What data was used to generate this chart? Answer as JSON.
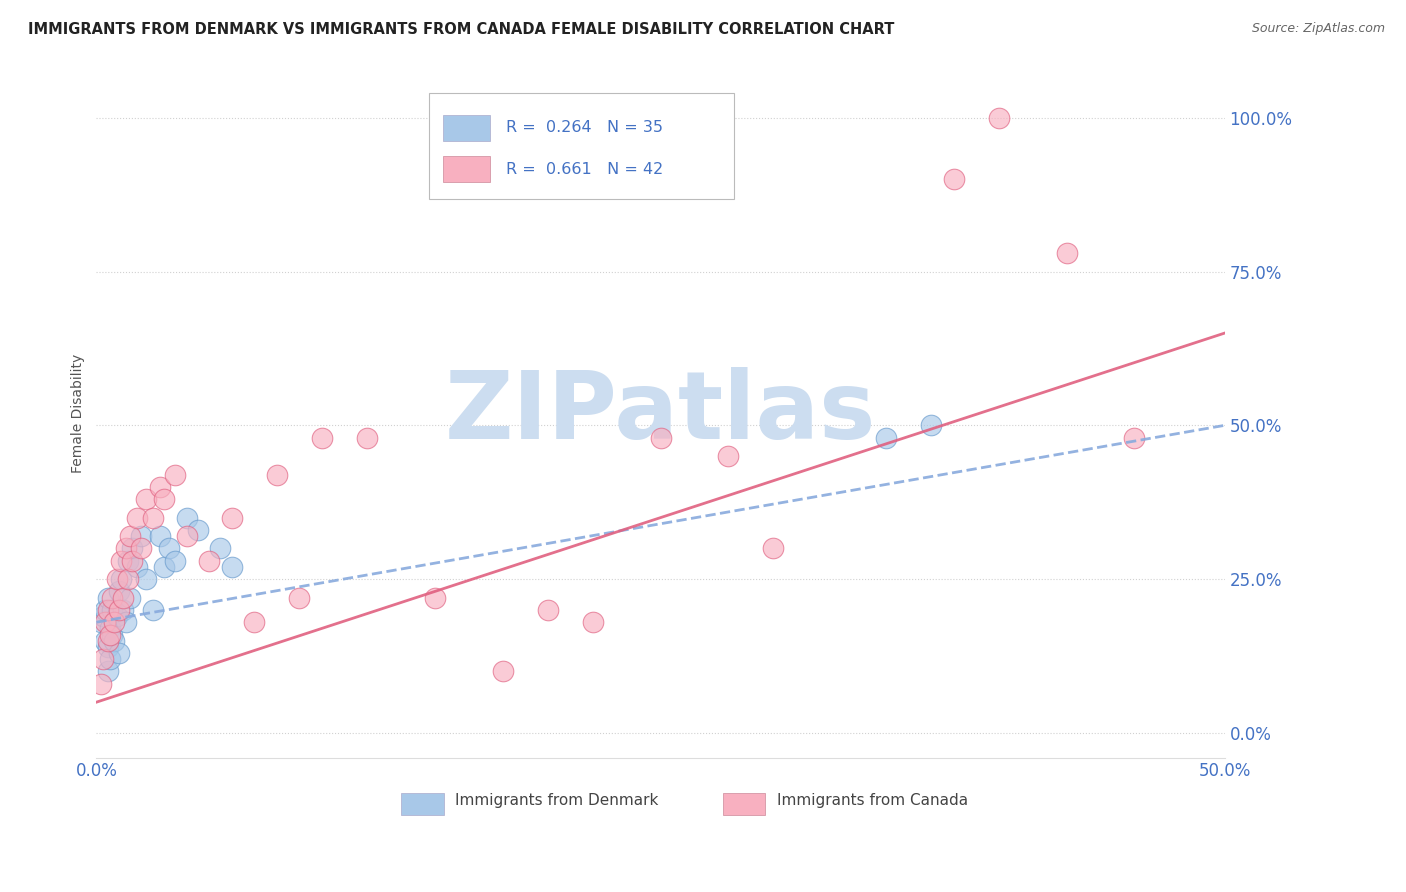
{
  "title": "IMMIGRANTS FROM DENMARK VS IMMIGRANTS FROM CANADA FEMALE DISABILITY CORRELATION CHART",
  "source": "Source: ZipAtlas.com",
  "ylabel": "Female Disability",
  "xlim": [
    0.0,
    0.5
  ],
  "ylim": [
    -0.04,
    1.08
  ],
  "yticks": [
    0.0,
    0.25,
    0.5,
    0.75,
    1.0
  ],
  "ytick_labels": [
    "0.0%",
    "25.0%",
    "50.0%",
    "75.0%",
    "100.0%"
  ],
  "xticks": [
    0.0,
    0.1,
    0.2,
    0.3,
    0.4,
    0.5
  ],
  "xtick_labels": [
    "0.0%",
    "",
    "",
    "",
    "",
    "50.0%"
  ],
  "legend_entries": [
    {
      "label": "Immigrants from Denmark",
      "color": "#a8c8e8",
      "R": 0.264,
      "N": 35
    },
    {
      "label": "Immigrants from Canada",
      "color": "#f8b0c0",
      "R": 0.661,
      "N": 42
    }
  ],
  "denmark_scatter_color": "#a8c8e8",
  "denmark_edge_color": "#6699cc",
  "canada_scatter_color": "#f8b0c0",
  "canada_edge_color": "#e06080",
  "denmark_line_color": "#88aadd",
  "canada_line_color": "#e06080",
  "watermark": "ZIPatlas",
  "watermark_color": "#ccddf0",
  "title_color": "#222222",
  "source_color": "#666666",
  "axis_color": "#4472c4",
  "ylabel_color": "#555555",
  "grid_color": "#cccccc",
  "denmark_x": [
    0.002,
    0.003,
    0.004,
    0.004,
    0.005,
    0.005,
    0.005,
    0.006,
    0.006,
    0.007,
    0.007,
    0.008,
    0.009,
    0.01,
    0.01,
    0.011,
    0.012,
    0.013,
    0.014,
    0.015,
    0.016,
    0.018,
    0.02,
    0.022,
    0.025,
    0.028,
    0.03,
    0.032,
    0.035,
    0.04,
    0.045,
    0.055,
    0.06,
    0.35,
    0.37
  ],
  "denmark_y": [
    0.18,
    0.19,
    0.15,
    0.2,
    0.1,
    0.14,
    0.22,
    0.12,
    0.17,
    0.16,
    0.2,
    0.15,
    0.19,
    0.13,
    0.23,
    0.25,
    0.2,
    0.18,
    0.28,
    0.22,
    0.3,
    0.27,
    0.32,
    0.25,
    0.2,
    0.32,
    0.27,
    0.3,
    0.28,
    0.35,
    0.33,
    0.3,
    0.27,
    0.48,
    0.5
  ],
  "canada_x": [
    0.002,
    0.003,
    0.004,
    0.005,
    0.005,
    0.006,
    0.007,
    0.008,
    0.009,
    0.01,
    0.011,
    0.012,
    0.013,
    0.014,
    0.015,
    0.016,
    0.018,
    0.02,
    0.022,
    0.025,
    0.028,
    0.03,
    0.035,
    0.04,
    0.05,
    0.06,
    0.07,
    0.08,
    0.09,
    0.1,
    0.12,
    0.15,
    0.18,
    0.2,
    0.22,
    0.25,
    0.28,
    0.3,
    0.38,
    0.4,
    0.43,
    0.46
  ],
  "canada_y": [
    0.08,
    0.12,
    0.18,
    0.15,
    0.2,
    0.16,
    0.22,
    0.18,
    0.25,
    0.2,
    0.28,
    0.22,
    0.3,
    0.25,
    0.32,
    0.28,
    0.35,
    0.3,
    0.38,
    0.35,
    0.4,
    0.38,
    0.42,
    0.32,
    0.28,
    0.35,
    0.18,
    0.42,
    0.22,
    0.48,
    0.48,
    0.22,
    0.1,
    0.2,
    0.18,
    0.48,
    0.45,
    0.3,
    0.9,
    1.0,
    0.78,
    0.48
  ],
  "dk_line_x": [
    0.0,
    0.5
  ],
  "dk_line_y": [
    0.18,
    0.5
  ],
  "ca_line_x": [
    0.0,
    0.5
  ],
  "ca_line_y": [
    0.05,
    0.65
  ]
}
